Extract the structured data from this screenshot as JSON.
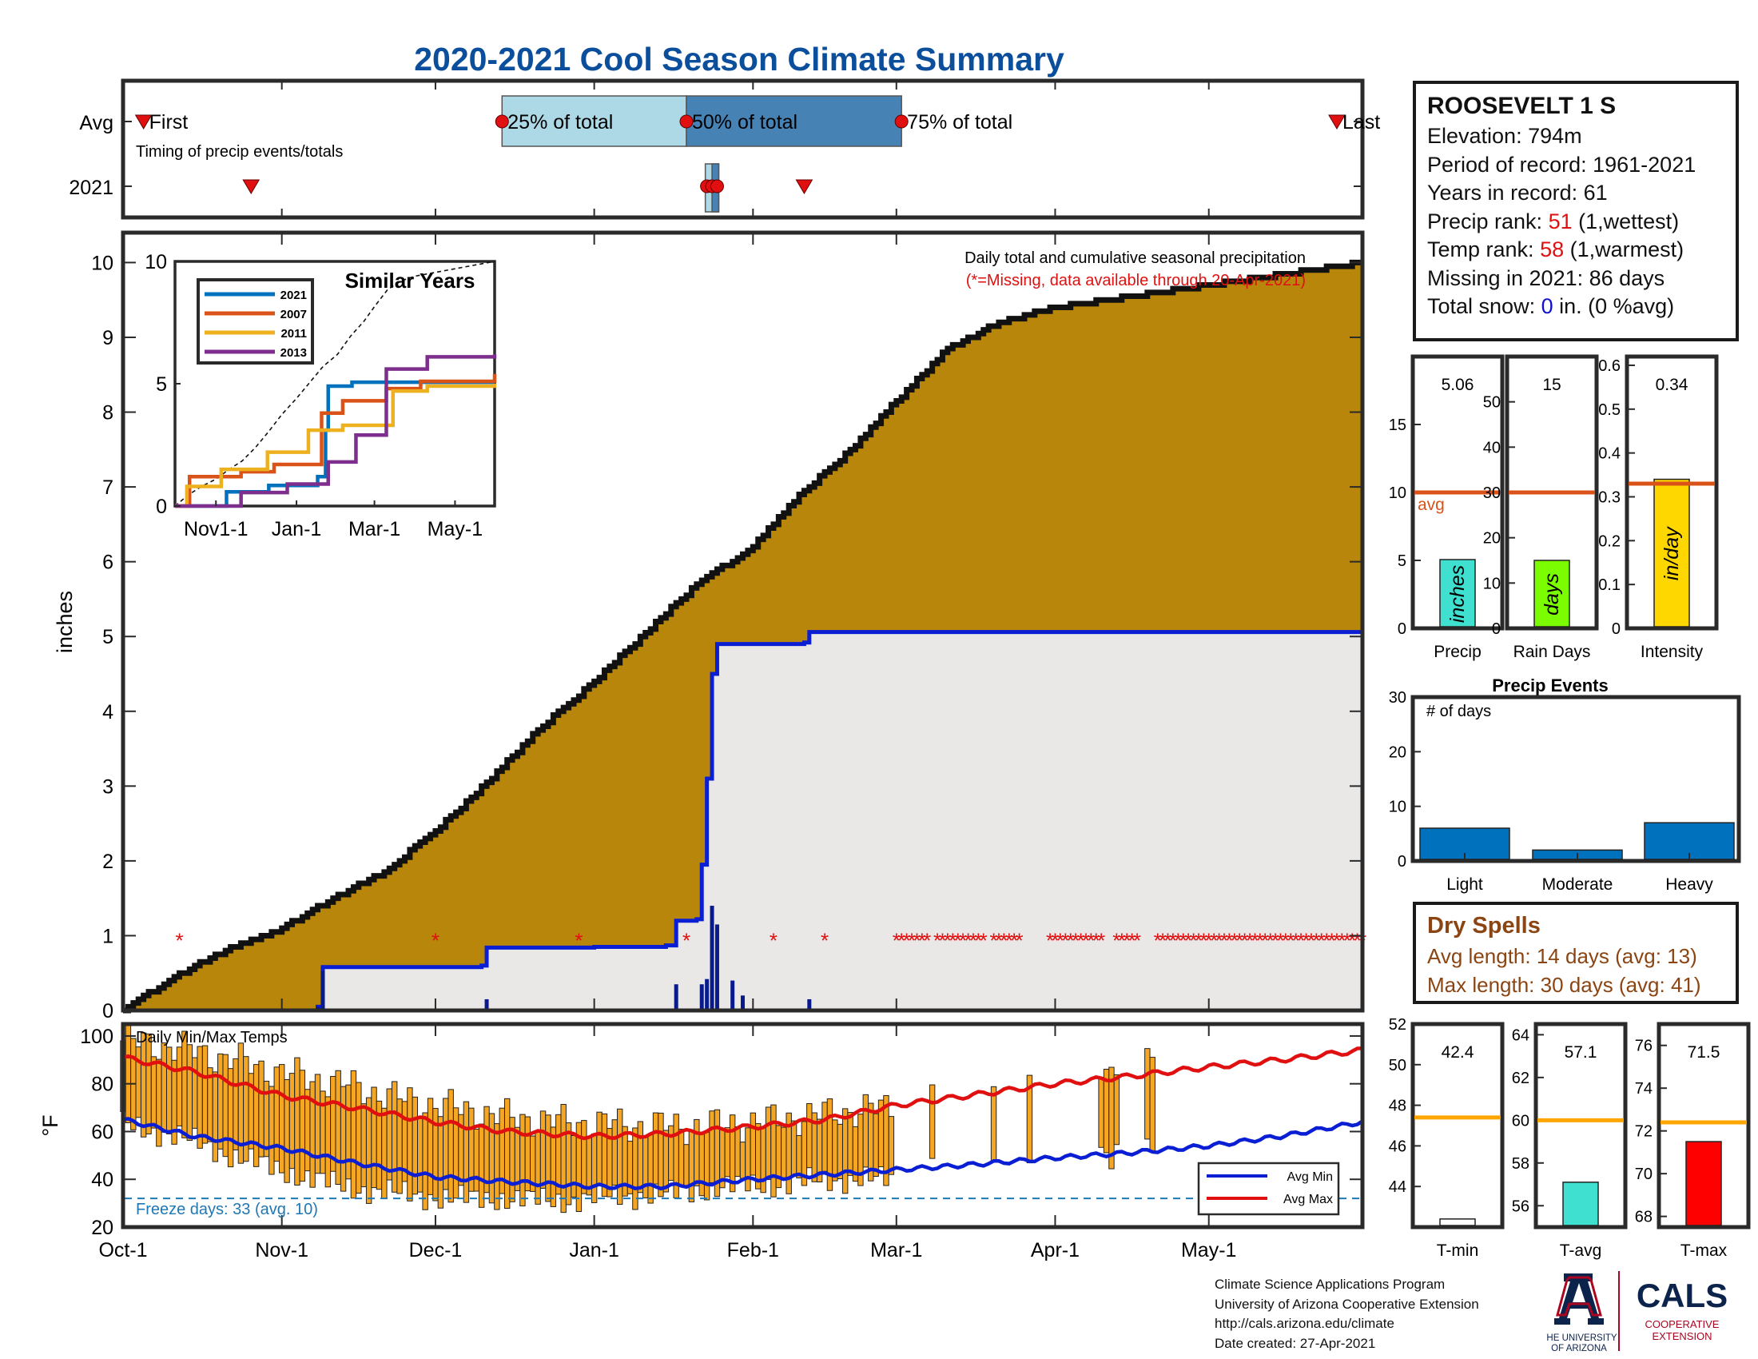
{
  "title": "2020-2021 Cool Season Climate Summary",
  "timing": {
    "row_avg": "Avg",
    "row_year": "2021",
    "subtitle": "Timing of precip events/totals",
    "first_label": "First",
    "q25_label": "25% of total",
    "q50_label": "50% of total",
    "q75_label": "75% of total",
    "last_label": "Last",
    "avg_dates": {
      "first": "2020-10-05",
      "q25": "2020-12-14",
      "q50": "2021-01-19",
      "q75": "2021-03-02",
      "last": "2021-05-26"
    },
    "year_dates": {
      "first": "2020-10-26",
      "q25": "2021-01-23",
      "q50": "2021-01-24",
      "q75": "2021-01-25",
      "last": "2021-02-11"
    }
  },
  "station": {
    "name": "ROOSEVELT 1 S",
    "elevation_label": "Elevation: 794m",
    "period_label": "Period of record: 1961-2021",
    "years_label": "Years in record: 61",
    "precip_rank_prefix": "Precip rank: ",
    "precip_rank": "51",
    "precip_rank_suffix": " (1,wettest)",
    "temp_rank_prefix": "Temp rank: ",
    "temp_rank": "58",
    "temp_rank_suffix": " (1,warmest)",
    "missing_label": "Missing in 2021: 86 days",
    "snow_prefix": "Total snow: ",
    "snow_value": "0",
    "snow_suffix": " in. (0 %avg)"
  },
  "dry_spells": {
    "title": "Dry Spells",
    "avg_label": "Avg length: 14 days (avg: 13)",
    "max_label": "Max length: 30 days (avg: 41)"
  },
  "credits": {
    "line1": "Climate Science Applications Program",
    "line2": "University of Arizona Cooperative Extension",
    "line3": "http://cals.arizona.edu/climate",
    "line4": " Date created: 27-Apr-2021"
  },
  "logos": {
    "ua_name_line1": "THE UNIVERSITY",
    "ua_name_line2": "OF ARIZONA",
    "cals": "CALS",
    "cals_sub1": "COOPERATIVE",
    "cals_sub2": "EXTENSION"
  },
  "colors": {
    "title": "#0b4f9c",
    "cumulative_avg_fill": "#b8860b",
    "current_fill": "#e9e8e7",
    "current_line": "#0a1ed4",
    "daily_bar": "#0a1a8c",
    "missing": "#e01010",
    "temp_bar": "#f5a623",
    "avg_min": "#0a1ed4",
    "avg_max": "#e01010",
    "freeze_line": "#1f77b4",
    "avg_line_precip": "#d95319",
    "avg_line_temp": "#ffa500"
  },
  "chart_data": [
    {
      "id": "precip",
      "type": "area",
      "title": "Daily total and cumulative seasonal precipitation",
      "note": "(*=Missing, data available through 20-Apr-2021)",
      "ylabel": "inches",
      "ylim": [
        0,
        10.4
      ],
      "yticks": [
        0,
        1,
        2,
        3,
        4,
        5,
        6,
        7,
        8,
        9,
        10
      ],
      "x_range": [
        "2020-10-01",
        "2021-05-31"
      ],
      "x_ticks": [
        "Oct-1",
        "Nov-1",
        "Dec-1",
        "Jan-1",
        "Feb-1",
        "Mar-1",
        "Apr-1",
        "May-1"
      ],
      "avg_cumulative": {
        "x": [
          "2020-10-01",
          "2020-10-11",
          "2020-10-21",
          "2020-11-01",
          "2020-11-11",
          "2020-11-21",
          "2020-12-01",
          "2020-12-11",
          "2020-12-21",
          "2021-01-01",
          "2021-01-11",
          "2021-01-21",
          "2021-02-01",
          "2021-02-11",
          "2021-02-21",
          "2021-03-01",
          "2021-03-11",
          "2021-03-21",
          "2021-04-01",
          "2021-04-11",
          "2021-04-21",
          "2021-05-01",
          "2021-05-11",
          "2021-05-21",
          "2021-05-31"
        ],
        "y": [
          0.0,
          0.45,
          0.8,
          1.1,
          1.5,
          1.85,
          2.4,
          3.05,
          3.75,
          4.4,
          5.05,
          5.7,
          6.2,
          6.95,
          7.55,
          8.15,
          8.85,
          9.2,
          9.4,
          9.5,
          9.6,
          9.7,
          9.8,
          9.9,
          10.0
        ]
      },
      "series": [
        {
          "name": "2021",
          "x": [
            "2020-10-01",
            "2020-10-31",
            "2020-11-08",
            "2020-11-09",
            "2020-12-10",
            "2020-12-11",
            "2021-01-01",
            "2021-01-15",
            "2021-01-17",
            "2021-01-21",
            "2021-01-22",
            "2021-01-23",
            "2021-01-24",
            "2021-01-25",
            "2021-01-26",
            "2021-01-28",
            "2021-02-11",
            "2021-02-12",
            "2021-05-31"
          ],
          "y": [
            0.0,
            0.0,
            0.05,
            0.58,
            0.6,
            0.84,
            0.85,
            0.87,
            1.2,
            1.22,
            1.95,
            3.1,
            4.5,
            4.9,
            4.9,
            4.9,
            4.92,
            5.06,
            5.06
          ]
        }
      ],
      "daily": {
        "x": [
          "2020-11-08",
          "2020-11-09",
          "2020-12-11",
          "2021-01-17",
          "2021-01-22",
          "2021-01-23",
          "2021-01-24",
          "2021-01-25",
          "2021-01-28",
          "2021-01-30",
          "2021-02-12"
        ],
        "y": [
          0.05,
          0.53,
          0.15,
          0.35,
          0.35,
          0.42,
          1.4,
          1.15,
          0.4,
          0.2,
          0.15
        ]
      },
      "missing_dates": [
        "2020-10-12",
        "2020-12-01",
        "2020-12-29",
        "2021-01-19",
        "2021-02-05",
        "2021-02-15",
        "2021-03-01 to 2021-03-07",
        "2021-03-09 to 2021-03-18",
        "2021-03-20 to 2021-03-25",
        "2021-03-31 to 2021-04-10",
        "2021-04-13 to 2021-04-17",
        "2021-04-21 to 2021-05-31"
      ]
    },
    {
      "id": "similar-years",
      "type": "line",
      "title": "Similar Years",
      "ylim": [
        0,
        10
      ],
      "yticks": [
        0,
        5,
        10
      ],
      "x_ticks": [
        "Nov1-1",
        "Jan-1",
        "Mar-1",
        "May-1"
      ],
      "series": [
        {
          "name": "2021",
          "x": [
            "2020-10-01",
            "2020-11-09",
            "2020-12-11",
            "2021-01-17",
            "2021-01-23",
            "2021-01-25",
            "2021-02-12",
            "2021-05-31"
          ],
          "y": [
            0,
            0.58,
            0.84,
            1.2,
            3.1,
            4.9,
            5.06,
            5.06
          ]
        },
        {
          "name": "2007",
          "x": [
            "2020-10-01",
            "2020-10-12",
            "2020-11-20",
            "2020-12-15",
            "2021-01-20",
            "2021-02-05",
            "2021-03-10",
            "2021-04-05",
            "2021-05-31"
          ],
          "y": [
            0,
            1.2,
            1.4,
            1.7,
            3.8,
            4.3,
            4.8,
            5.1,
            5.4
          ]
        },
        {
          "name": "2011",
          "x": [
            "2020-10-01",
            "2020-10-10",
            "2020-11-05",
            "2020-12-10",
            "2021-01-10",
            "2021-02-05",
            "2021-03-15",
            "2021-04-10",
            "2021-05-31"
          ],
          "y": [
            0,
            0.8,
            1.5,
            2.2,
            3.1,
            3.3,
            4.7,
            4.9,
            5.0
          ]
        },
        {
          "name": "2013",
          "x": [
            "2020-10-01",
            "2020-11-20",
            "2020-12-25",
            "2021-01-25",
            "2021-02-15",
            "2021-03-10",
            "2021-04-10",
            "2021-05-31"
          ],
          "y": [
            0,
            0.55,
            0.9,
            1.8,
            2.9,
            5.6,
            6.1,
            6.2
          ]
        }
      ],
      "avg_cumulative_dashed": true
    },
    {
      "id": "bars-precip",
      "type": "bar",
      "categories": [
        "Precip",
        "Rain Days",
        "Intensity"
      ],
      "series": [
        {
          "name": "inches",
          "value": 5.06,
          "label": "5.06",
          "avg": 10.0,
          "ylim": [
            0,
            20
          ],
          "yticks": [
            0,
            5,
            10,
            15
          ],
          "color": "#40e0d0"
        },
        {
          "name": "days",
          "value": 15,
          "label": "15",
          "avg": 30,
          "ylim": [
            0,
            60
          ],
          "yticks": [
            0,
            10,
            20,
            30,
            40,
            50
          ],
          "color": "#7cfc00"
        },
        {
          "name": "in/day",
          "value": 0.34,
          "label": "0.34",
          "avg": 0.33,
          "ylim": [
            0,
            0.62
          ],
          "yticks": [
            0,
            0.1,
            0.2,
            0.3,
            0.4,
            0.5,
            0.6
          ],
          "color": "#ffd700"
        }
      ],
      "avg_label": "avg"
    },
    {
      "id": "precip-events",
      "type": "bar",
      "title": "Precip Events",
      "ylabel": "# of days",
      "categories": [
        "Light",
        "Moderate",
        "Heavy"
      ],
      "values": [
        6,
        2,
        7
      ],
      "ylim": [
        0,
        30
      ],
      "yticks": [
        0,
        10,
        20,
        30
      ]
    },
    {
      "id": "temps",
      "type": "bar",
      "title": "Daily Min/Max Temps",
      "ylabel": "°F",
      "ylim": [
        20,
        105
      ],
      "yticks": [
        20,
        40,
        60,
        80,
        100
      ],
      "x_range": [
        "2020-10-01",
        "2021-05-31"
      ],
      "x_ticks": [
        "Oct-1",
        "Nov-1",
        "Dec-1",
        "Jan-1",
        "Feb-1",
        "Mar-1",
        "Apr-1",
        "May-1"
      ],
      "freeze_line": 32,
      "freeze_label": "Freeze days: 33 (avg. 10)",
      "avg_min": {
        "name": "Avg Min",
        "x": [
          "2020-10-01",
          "2020-10-15",
          "2020-11-01",
          "2020-11-15",
          "2020-12-01",
          "2020-12-15",
          "2021-01-01",
          "2021-01-15",
          "2021-02-01",
          "2021-02-15",
          "2021-03-01",
          "2021-03-15",
          "2021-04-01",
          "2021-04-15",
          "2021-05-01",
          "2021-05-15",
          "2021-05-31"
        ],
        "y": [
          65,
          58,
          53,
          47,
          41,
          39,
          37,
          37,
          40,
          42,
          44,
          46,
          49,
          51,
          54,
          58,
          64
        ]
      },
      "avg_max": {
        "name": "Avg Max",
        "x": [
          "2020-10-01",
          "2020-10-15",
          "2020-11-01",
          "2020-11-15",
          "2020-12-01",
          "2020-12-15",
          "2021-01-01",
          "2021-01-15",
          "2021-02-01",
          "2021-02-15",
          "2021-03-01",
          "2021-03-15",
          "2021-04-01",
          "2021-04-15",
          "2021-05-01",
          "2021-05-15",
          "2021-05-31"
        ],
        "y": [
          91,
          85,
          75,
          70,
          64,
          60,
          58,
          59,
          62,
          65,
          71,
          75,
          80,
          83,
          87,
          90,
          94
        ]
      },
      "observed": {
        "segments": [
          {
            "start": "2020-10-01",
            "end": "2021-02-28",
            "max_base": [
              98,
              95,
              90,
              84,
              80,
              74,
              70,
              66,
              64,
              63,
              62,
              63,
              65,
              68,
              70
            ],
            "min_base": [
              63,
              58,
              50,
              43,
              37,
              34,
              32,
              32,
              31,
              33,
              34,
              37,
              38,
              40,
              40
            ]
          },
          {
            "start": "2021-03-08",
            "end": "2021-03-08",
            "max_base": [
              82
            ],
            "min_base": [
              48
            ]
          },
          {
            "start": "2021-03-20",
            "end": "2021-03-20",
            "max_base": [
              79
            ],
            "min_base": [
              45
            ]
          },
          {
            "start": "2021-03-27",
            "end": "2021-03-27",
            "max_base": [
              84
            ],
            "min_base": [
              48
            ]
          },
          {
            "start": "2021-04-10",
            "end": "2021-04-13",
            "max_base": [
              88,
              90,
              85,
              86
            ],
            "min_base": [
              52,
              51,
              50,
              53
            ]
          },
          {
            "start": "2021-04-19",
            "end": "2021-04-20",
            "max_base": [
              90,
              88
            ],
            "min_base": [
              52,
              54
            ]
          }
        ]
      }
    },
    {
      "id": "bars-temp",
      "type": "bar",
      "categories": [
        "T-min",
        "T-avg",
        "T-max"
      ],
      "series": [
        {
          "name": "T-min",
          "value": 42.4,
          "label": "42.4",
          "avg": 47.4,
          "ylim": [
            42.0,
            52.0
          ],
          "yticks": [
            44,
            46,
            48,
            50,
            52
          ],
          "color": "#ffffff"
        },
        {
          "name": "T-avg",
          "value": 57.1,
          "label": "57.1",
          "avg": 60.0,
          "ylim": [
            55.0,
            64.5
          ],
          "yticks": [
            56,
            58,
            60,
            62,
            64
          ],
          "color": "#40e0d0"
        },
        {
          "name": "T-max",
          "value": 71.5,
          "label": "71.5",
          "avg": 72.4,
          "ylim": [
            67.5,
            77.0
          ],
          "yticks": [
            68,
            70,
            72,
            74,
            76
          ],
          "color": "#ff0000"
        }
      ]
    }
  ]
}
